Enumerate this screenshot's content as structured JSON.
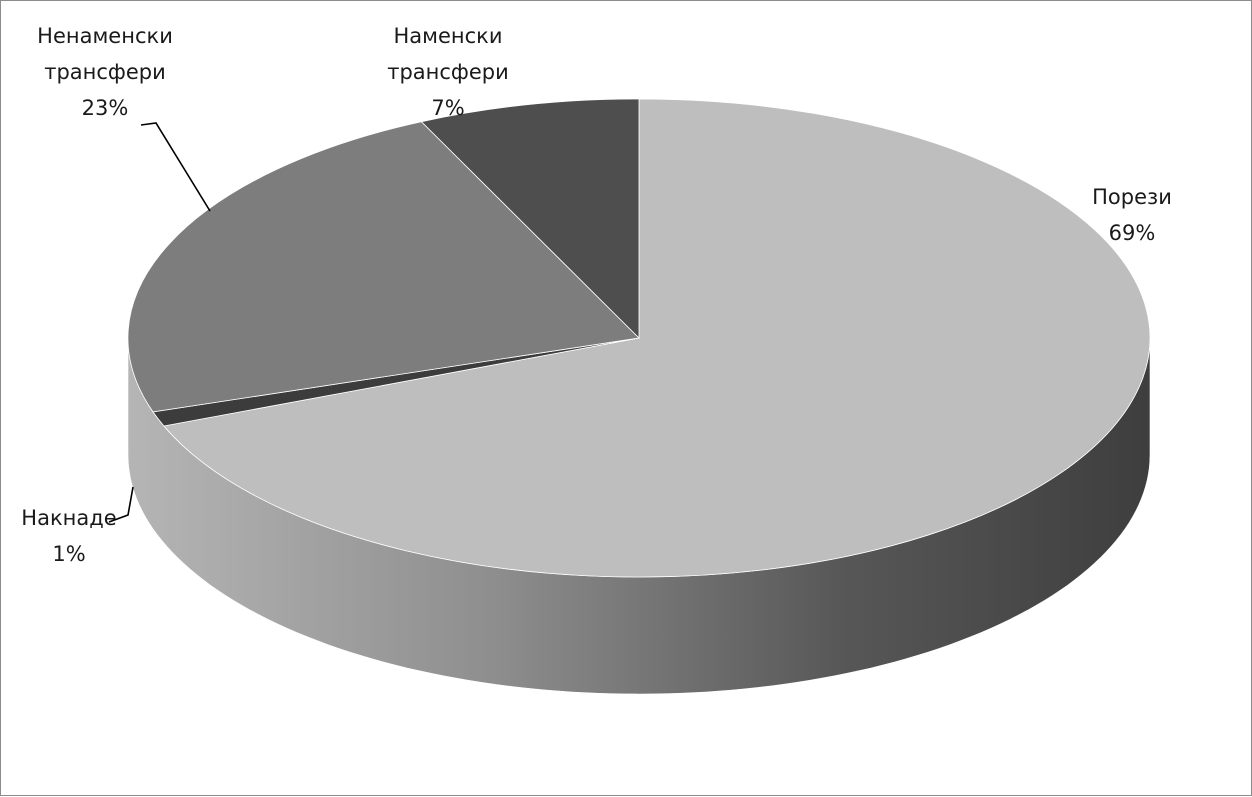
{
  "chart_data": {
    "type": "pie",
    "categories": [
      "Порези",
      "Накнаде",
      "Ненаменски трансфери",
      "Наменски трансфери"
    ],
    "values": [
      69,
      1,
      23,
      7
    ],
    "labels": [
      {
        "name_lines": [
          "Порези"
        ],
        "value_text": "69%"
      },
      {
        "name_lines": [
          "Накнаде"
        ],
        "value_text": "1%"
      },
      {
        "name_lines": [
          "Ненаменски",
          "трансфери"
        ],
        "value_text": "23%"
      },
      {
        "name_lines": [
          "Наменски",
          "трансфери"
        ],
        "value_text": "7%"
      }
    ],
    "colors": [
      "#bebebe",
      "#3c3c3c",
      "#7d7d7d",
      "#4e4e4e"
    ],
    "style": "3d",
    "legend": "none"
  }
}
